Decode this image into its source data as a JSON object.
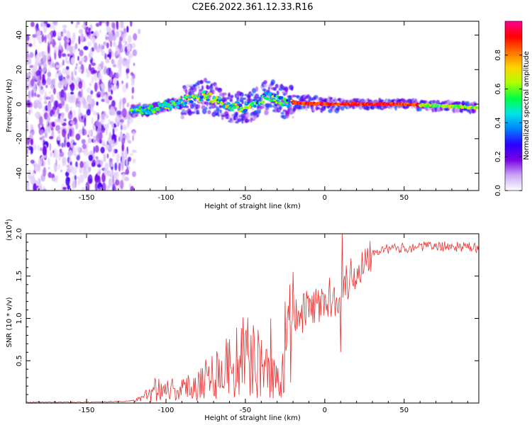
{
  "title": "C2E6.2022.361.12.33.R16",
  "colors": {
    "snr_line": "#e83232",
    "background": "#ffffff",
    "axis": "#000000"
  },
  "chart_data": [
    {
      "type": "heatmap",
      "xlabel": "Height of straight line (km)",
      "ylabel": "Frequency (Hz)",
      "xlim": [
        -188,
        97
      ],
      "ylim": [
        -50,
        48
      ],
      "x_ticks": [
        -150,
        -100,
        -50,
        0,
        50
      ],
      "x_tick_labels": [
        "-150",
        "-100",
        "-50",
        "0",
        "50"
      ],
      "y_ticks": [
        -40,
        -20,
        0,
        20,
        40
      ],
      "y_tick_labels": [
        "-40",
        "-20",
        "0",
        "20",
        "40"
      ],
      "grid": false,
      "colorbar": {
        "label": "Normalized spectral amplitude",
        "range": [
          0,
          1
        ],
        "ticks": [
          0.0,
          0.2,
          0.4,
          0.6,
          0.8
        ],
        "tick_labels": [
          "0.0",
          "0.2",
          "0.4",
          "0.6",
          "0.8"
        ],
        "colormap": [
          "#ffffff",
          "#c9a6f5",
          "#7a00e6",
          "#2a00ff",
          "#0080ff",
          "#00e6e6",
          "#00ff40",
          "#b0ff00",
          "#ffd400",
          "#ff7000",
          "#ff0000",
          "#ff0090"
        ]
      },
      "structure": {
        "noise_region_x": [
          -188,
          -120
        ],
        "signal_path": [
          [
            -122,
            -4
          ],
          [
            -110,
            -3
          ],
          [
            -100,
            -1
          ],
          [
            -90,
            1
          ],
          [
            -75,
            5
          ],
          [
            -60,
            -1
          ],
          [
            -50,
            -2
          ],
          [
            -35,
            5
          ],
          [
            -25,
            1
          ],
          [
            0,
            0
          ],
          [
            50,
            0
          ],
          [
            95,
            -2
          ]
        ]
      }
    },
    {
      "type": "line",
      "xlabel": "Height of straight line (km)",
      "ylabel": "SNR (10 * v/v)",
      "y_multiplier_label": "(x10",
      "y_multiplier_exp": "4",
      "y_multiplier_close": ")",
      "xlim": [
        -188,
        97
      ],
      "ylim": [
        0.0,
        2.0
      ],
      "x_ticks": [
        -150,
        -100,
        -50,
        0,
        50
      ],
      "x_tick_labels": [
        "-150",
        "-100",
        "-50",
        "0",
        "50"
      ],
      "y_ticks": [
        0.5,
        1.0,
        1.5,
        2.0
      ],
      "y_tick_labels": [
        "0.5",
        "1.0",
        "1.5",
        "2.0"
      ],
      "grid": false,
      "envelope": [
        [
          -188,
          0.01
        ],
        [
          -150,
          0.01
        ],
        [
          -125,
          0.02
        ],
        [
          -115,
          0.05
        ],
        [
          -105,
          0.2
        ],
        [
          -100,
          0.18
        ],
        [
          -90,
          0.15
        ],
        [
          -80,
          0.25
        ],
        [
          -70,
          0.35
        ],
        [
          -60,
          0.45
        ],
        [
          -50,
          0.55
        ],
        [
          -40,
          0.45
        ],
        [
          -30,
          0.25
        ],
        [
          -25,
          0.55
        ],
        [
          -20,
          0.95
        ],
        [
          -15,
          1.05
        ],
        [
          -10,
          1.1
        ],
        [
          -5,
          1.15
        ],
        [
          0,
          1.2
        ],
        [
          5,
          1.25
        ],
        [
          10,
          1.3
        ],
        [
          15,
          1.45
        ],
        [
          20,
          1.55
        ],
        [
          25,
          1.7
        ],
        [
          30,
          1.8
        ],
        [
          40,
          1.82
        ],
        [
          50,
          1.83
        ],
        [
          60,
          1.85
        ],
        [
          70,
          1.85
        ],
        [
          80,
          1.85
        ],
        [
          90,
          1.84
        ],
        [
          97,
          1.83
        ]
      ],
      "spikes": [
        [
          11,
          2.0
        ],
        [
          10,
          0.6
        ],
        [
          -20,
          1.55
        ],
        [
          -22,
          1.4
        ],
        [
          -25,
          1.2
        ],
        [
          -34,
          1.0
        ],
        [
          -45,
          0.92
        ]
      ]
    }
  ]
}
